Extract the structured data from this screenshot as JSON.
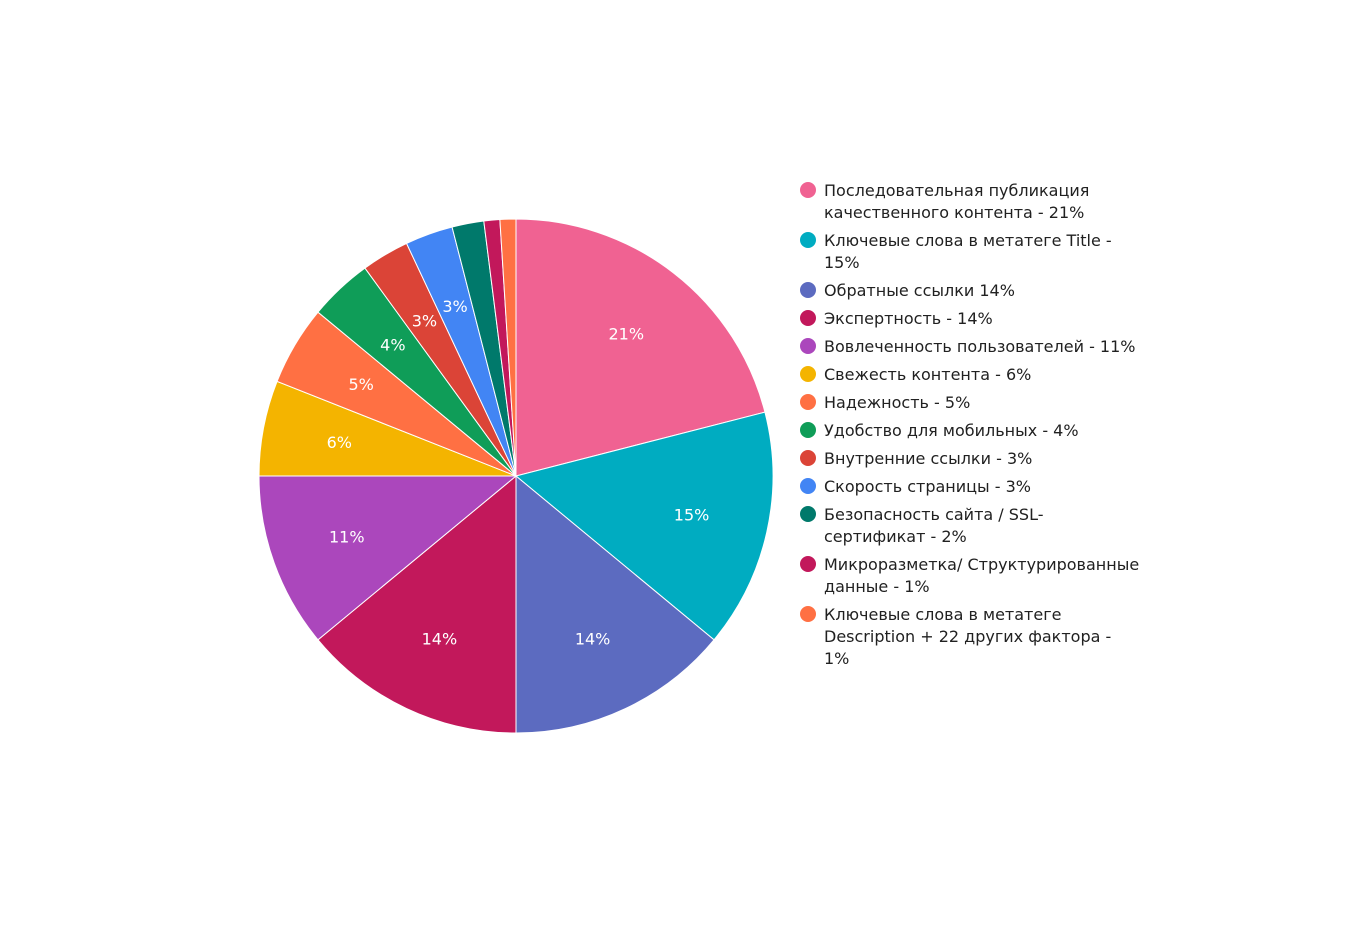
{
  "chart_data": {
    "type": "pie",
    "title": "",
    "legend_position": "right",
    "slices": [
      {
        "legend": "Последовательная публикация качественного контента - 21%",
        "label": "21%",
        "value": 21,
        "color": "#f06292"
      },
      {
        "legend": "Ключевые слова в метатеге Title - 15%",
        "label": "15%",
        "value": 15,
        "color": "#00acc1"
      },
      {
        "legend": "Обратные ссылки 14%",
        "label": "14%",
        "value": 14,
        "color": "#5c6bc0"
      },
      {
        "legend": "Экспертность - 14%",
        "label": "14%",
        "value": 14,
        "color": "#c2185b"
      },
      {
        "legend": "Вовлеченность пользователей - 11%",
        "label": "11%",
        "value": 11,
        "color": "#ab47bc"
      },
      {
        "legend": "Свежесть контента - 6%",
        "label": "6%",
        "value": 6,
        "color": "#f4b400"
      },
      {
        "legend": "Надежность - 5%",
        "label": "5%",
        "value": 5,
        "color": "#ff7043"
      },
      {
        "legend": "Удобство для мобильных - 4%",
        "label": "4%",
        "value": 4,
        "color": "#0f9d58"
      },
      {
        "legend": "Внутренние ссылки - 3%",
        "label": "3%",
        "value": 3,
        "color": "#db4437"
      },
      {
        "legend": "Скорость страницы - 3%",
        "label": "3%",
        "value": 3,
        "color": "#4285f4"
      },
      {
        "legend": "Безопасность сайта / SSL-сертификат - 2%",
        "label": "",
        "value": 2,
        "color": "#00796b"
      },
      {
        "legend": "Микроразметка/ Структурированные данные - 1%",
        "label": "",
        "value": 1,
        "color": "#c2185b"
      },
      {
        "legend": "Ключевые слова в метатеге Description + 22 других фактора - 1%",
        "label": "",
        "value": 1,
        "color": "#ff7043"
      }
    ]
  }
}
